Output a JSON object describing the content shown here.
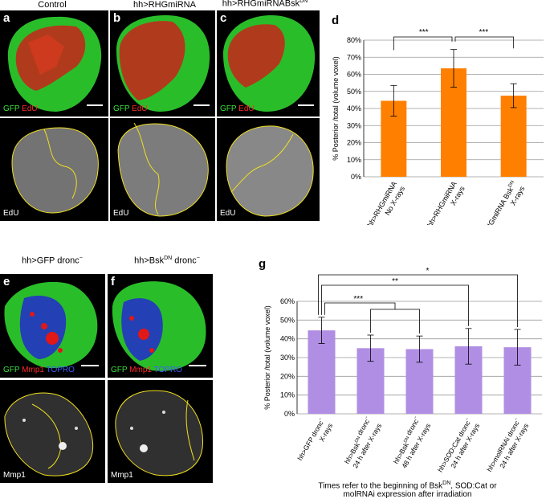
{
  "top_titles": {
    "control": "Control",
    "rhgmirna": "hh>RHGmiRNA",
    "bskdn_prefix": "hh>RHGmiRNABsk",
    "bskdn_sup": "DN"
  },
  "panel_labels": {
    "a": "a",
    "b": "b",
    "c": "c",
    "d": "d",
    "e": "e",
    "f": "f",
    "g": "g"
  },
  "channels": {
    "gfp": "GFP",
    "edu": "EdU",
    "mmp1": "Mmp1",
    "topro": "TOPRO"
  },
  "bottom_titles": {
    "e_prefix": "hh>GFP dronc",
    "e_sup": "−",
    "f_prefix": "hh>Bsk",
    "f_sup": "DN",
    "f_suffix": " dronc",
    "f_sup2": "−"
  },
  "colors": {
    "bar_d": "#ff7f00",
    "bar_g": "#b08ee3",
    "outline": "#f0e020",
    "gfp": "#2fd12f",
    "red": "#e01818",
    "blue": "#2030c8"
  },
  "chart_data": [
    {
      "type": "bar",
      "panel": "d",
      "categories": [
        {
          "line1": "hh>RHGmiRNA",
          "line1_sup": "",
          "line2": "No X-rays"
        },
        {
          "line1": "hh>RHGmiRNA",
          "line1_sup": "",
          "line2": "X-rays"
        },
        {
          "line1": "hh>RHGmiRNA Bsk",
          "line1_sup": "DN",
          "line2": "X-rays"
        }
      ],
      "values": [
        44.5,
        63.5,
        47.5
      ],
      "errors": [
        9,
        11,
        7
      ],
      "ylabel": "% Posterior /total (volume voxel)",
      "ylim": [
        0,
        80
      ],
      "ticks": [
        "0%",
        "10%",
        "20%",
        "30%",
        "40%",
        "50%",
        "60%",
        "70%",
        "80%"
      ],
      "significance": [
        {
          "label": "***"
        },
        {
          "label": "***"
        }
      ]
    },
    {
      "type": "bar",
      "panel": "g",
      "categories": [
        {
          "line1": "hh>GFP dronc",
          "line1_sup": "−",
          "line2": "X-rays"
        },
        {
          "line1": "hh>Bsk",
          "line1_sup": "DN",
          "line1_suffix": " dronc",
          "line1_sup2": "−",
          "line2": "24 h after X-rays"
        },
        {
          "line1": "hh>Bsk",
          "line1_sup": "DN",
          "line1_suffix": " dronc",
          "line1_sup2": "−",
          "line2": "48 h after X-rays"
        },
        {
          "line1": "hh>SOD:Cat dronc",
          "line1_sup": "−",
          "line2": "24 h after X-rays"
        },
        {
          "line1": "hh>molRNAi dronc",
          "line1_sup": "−",
          "line2": "24 h after X-rays"
        }
      ],
      "values": [
        44.5,
        35,
        34.5,
        36,
        35.5
      ],
      "errors": [
        7,
        7,
        7,
        9.5,
        9.5
      ],
      "ylabel": "% Posterior /total (volume voxel)",
      "ylim": [
        0,
        60
      ],
      "ticks": [
        "0%",
        "10%",
        "20%",
        "30%",
        "40%",
        "50%",
        "60%"
      ],
      "significance": [
        {
          "label": "***"
        },
        {
          "label": "**"
        },
        {
          "label": "*"
        }
      ]
    }
  ],
  "caption": {
    "line1_prefix": "Times refer to the beginning of Bsk",
    "line1_sup": "DN",
    "line1_suffix": ", SOD:Cat or",
    "line2": "molRNAi expression after irradiation"
  }
}
